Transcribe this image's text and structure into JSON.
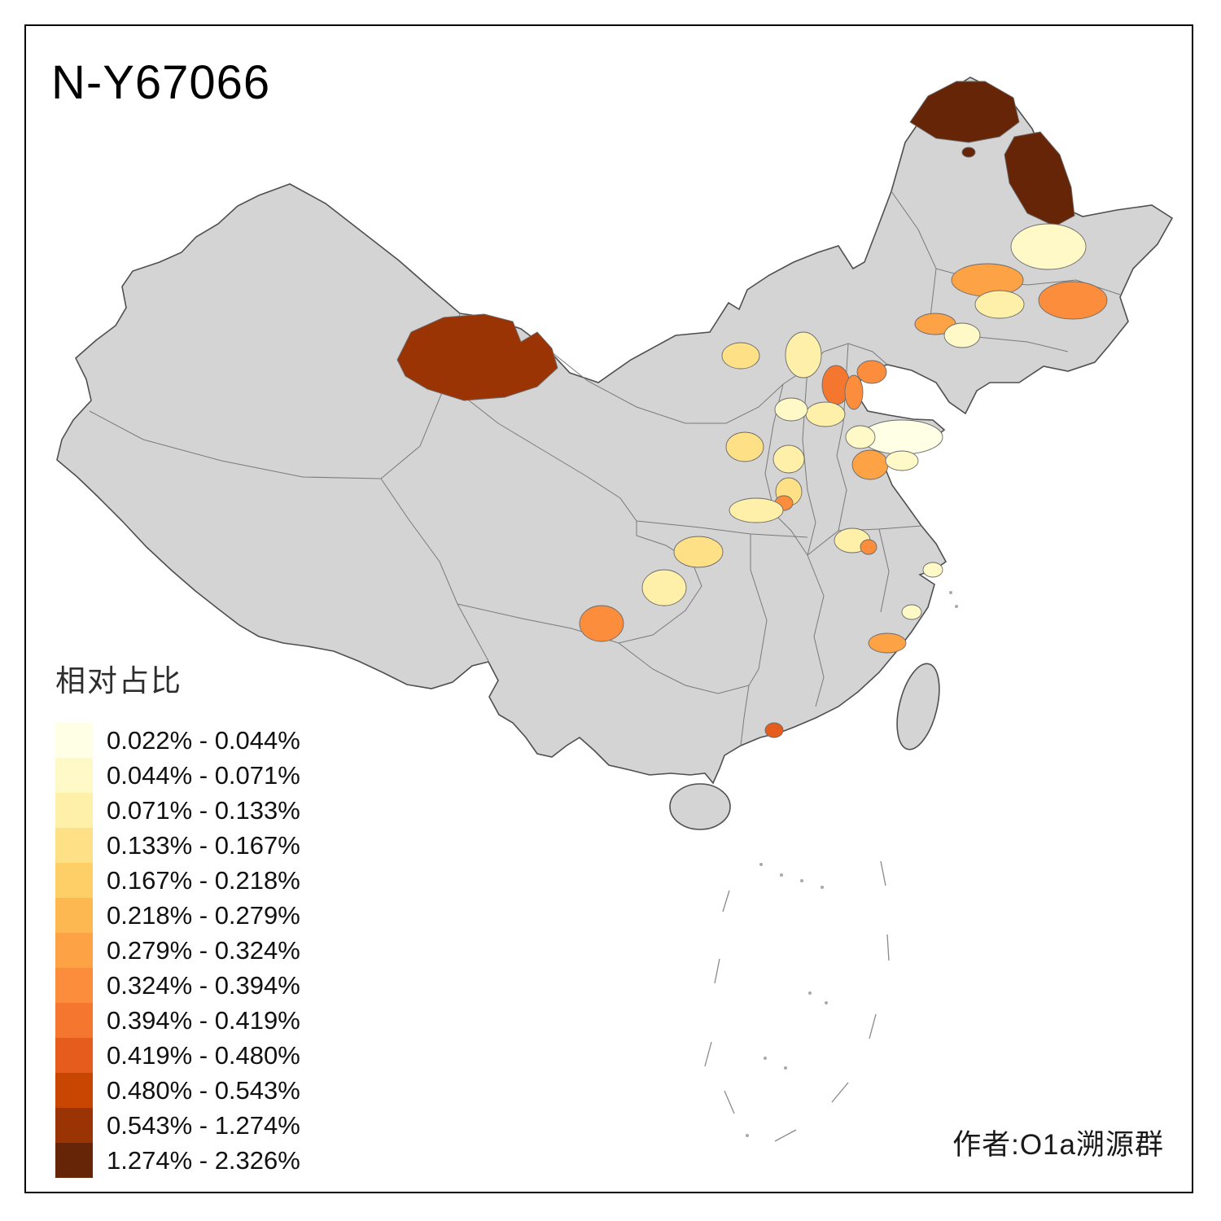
{
  "title": "N-Y67066",
  "author": "作者:O1a溯源群",
  "legend": {
    "title": "相对占比",
    "items": [
      {
        "label": "0.022% - 0.044%",
        "color": "#FFFFE5"
      },
      {
        "label": "0.044% - 0.071%",
        "color": "#FFF9C8"
      },
      {
        "label": "0.071% - 0.133%",
        "color": "#FEF0A8"
      },
      {
        "label": "0.133% - 0.167%",
        "color": "#FEE187"
      },
      {
        "label": "0.167% - 0.218%",
        "color": "#FECF66"
      },
      {
        "label": "0.218% - 0.279%",
        "color": "#FEB851"
      },
      {
        "label": "0.279% - 0.324%",
        "color": "#FDA245"
      },
      {
        "label": "0.324% - 0.394%",
        "color": "#FB8D3C"
      },
      {
        "label": "0.394% - 0.419%",
        "color": "#F5772F"
      },
      {
        "label": "0.419% - 0.480%",
        "color": "#E65C1C"
      },
      {
        "label": "0.480% - 0.543%",
        "color": "#C94602"
      },
      {
        "label": "0.543% - 1.274%",
        "color": "#9A3404"
      },
      {
        "label": "1.274% - 2.326%",
        "color": "#662506"
      }
    ]
  },
  "map": {
    "land_fill": "#D4D4D4",
    "outline_color": "#4F4F4F",
    "province_line_color": "#7A7A7A",
    "regions": {
      "p1": 13,
      "p2": 13,
      "p3": 13,
      "p4": 2,
      "p5": 7,
      "p6": 3,
      "p7": 8,
      "p8": 7,
      "p9": 2,
      "p10": 3,
      "p11": 4,
      "p12": 9,
      "p13": 8,
      "p14": 8,
      "p15": 3,
      "p16": 2,
      "p17": 1,
      "p18": 2,
      "p19": 7,
      "p20": 2,
      "p21": 4,
      "p22": 3,
      "p23": 4,
      "p24": 8,
      "p25": 3,
      "p26": 3,
      "p27": 8,
      "p28": 4,
      "p29": 3,
      "p30": 8,
      "p31": 12,
      "p32": 2,
      "p33": 2,
      "p34": 7,
      "p35": 10
    }
  }
}
